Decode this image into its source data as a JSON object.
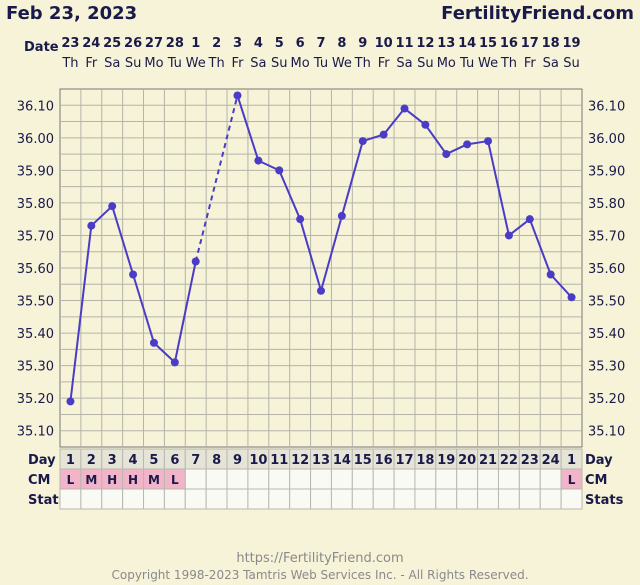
{
  "header": {
    "date": "Feb 23, 2023",
    "site": "FertilityFriend.com"
  },
  "footer": {
    "url": "https://FertilityFriend.com",
    "copyright": "Copyright 1998-2023 Tamtris Web Services Inc. - All Rights Reserved."
  },
  "row_labels": {
    "date": "Date",
    "day": "Day",
    "cm": "CM",
    "stats": "Stats"
  },
  "colors": {
    "line": "#4a3cc6",
    "grid_bg": "#f6f3d8",
    "grid_line": "#b4b4a8",
    "cm_fill": "#f2b4c8",
    "text": "#1a1a4a"
  },
  "chart_data": {
    "type": "line",
    "ylim": [
      35.05,
      36.15
    ],
    "yticks": [
      "36.10",
      "36.00",
      "35.90",
      "35.80",
      "35.70",
      "35.60",
      "35.50",
      "35.40",
      "35.30",
      "35.20",
      "35.10"
    ],
    "dates": [
      "23",
      "24",
      "25",
      "26",
      "27",
      "28",
      "1",
      "2",
      "3",
      "4",
      "5",
      "6",
      "7",
      "8",
      "9",
      "10",
      "11",
      "12",
      "13",
      "14",
      "15",
      "16",
      "17",
      "18",
      "19"
    ],
    "weekdays": [
      "Th",
      "Fr",
      "Sa",
      "Su",
      "Mo",
      "Tu",
      "We",
      "Th",
      "Fr",
      "Sa",
      "Su",
      "Mo",
      "Tu",
      "We",
      "Th",
      "Fr",
      "Sa",
      "Su",
      "Mo",
      "Tu",
      "We",
      "Th",
      "Fr",
      "Sa",
      "Su"
    ],
    "cycle_days": [
      "1",
      "2",
      "3",
      "4",
      "5",
      "6",
      "7",
      "8",
      "9",
      "10",
      "11",
      "12",
      "13",
      "14",
      "15",
      "16",
      "17",
      "18",
      "19",
      "20",
      "21",
      "22",
      "23",
      "24",
      "1"
    ],
    "cm": [
      "L",
      "M",
      "H",
      "H",
      "M",
      "L",
      "",
      "",
      "",
      "",
      "",
      "",
      "",
      "",
      "",
      "",
      "",
      "",
      "",
      "",
      "",
      "",
      "",
      "",
      "L"
    ],
    "temps": [
      35.19,
      35.73,
      35.79,
      35.58,
      35.37,
      35.31,
      35.62,
      null,
      36.13,
      35.93,
      35.9,
      35.75,
      35.53,
      35.76,
      35.99,
      36.01,
      36.09,
      36.04,
      35.95,
      35.98,
      35.99,
      35.7,
      35.75,
      35.58,
      35.51
    ],
    "gap_dashed": true
  }
}
